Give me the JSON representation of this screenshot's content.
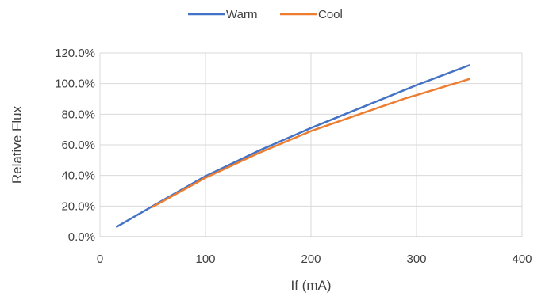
{
  "chart_data": {
    "type": "line",
    "title": "",
    "xlabel": "If (mA)",
    "ylabel": "Relative Flux",
    "xlim": [
      0,
      400
    ],
    "ylim": [
      0,
      1.2
    ],
    "x_ticks": [
      0,
      100,
      200,
      300,
      400
    ],
    "y_ticks": [
      0,
      0.2,
      0.4,
      0.6,
      0.8,
      1.0,
      1.2
    ],
    "y_tick_labels": [
      "0.0%",
      "20.0%",
      "40.0%",
      "60.0%",
      "80.0%",
      "100.0%",
      "120.0%"
    ],
    "grid": true,
    "legend_position": "top",
    "series": [
      {
        "name": "Warm",
        "color": "#4472C4",
        "x": [
          16,
          50,
          100,
          150,
          200,
          250,
          300,
          350
        ],
        "y": [
          0.065,
          0.2,
          0.395,
          0.56,
          0.71,
          0.85,
          0.99,
          1.12
        ]
      },
      {
        "name": "Cool",
        "color": "#ED7D31",
        "x": [
          50,
          100,
          150,
          200,
          250,
          290,
          300,
          350
        ],
        "y": [
          0.195,
          0.385,
          0.545,
          0.69,
          0.81,
          0.905,
          0.925,
          1.03
        ]
      }
    ]
  }
}
